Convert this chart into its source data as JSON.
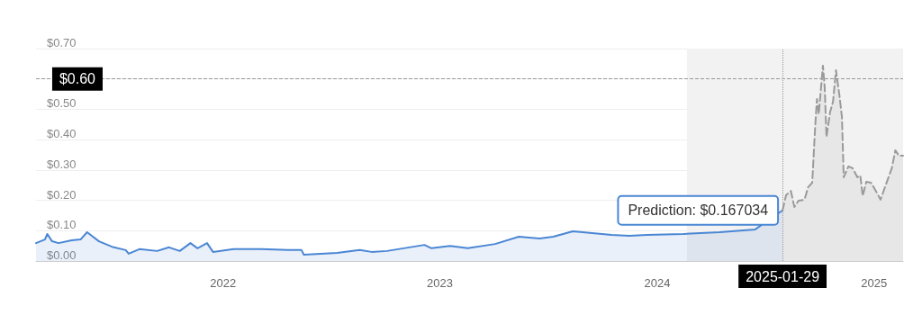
{
  "chart_data": {
    "type": "area",
    "x": [
      "2021-08-21",
      "2021-09-05",
      "2021-09-09",
      "2021-09-17",
      "2021-09-28",
      "2021-10-20",
      "2021-11-04",
      "2021-11-15",
      "2021-12-05",
      "2021-12-27",
      "2022-01-19",
      "2022-01-24",
      "2022-02-11",
      "2022-03-13",
      "2022-04-02",
      "2022-04-20",
      "2022-05-08",
      "2022-05-20",
      "2022-06-05",
      "2022-06-15",
      "2022-07-20",
      "2022-09-04",
      "2022-10-19",
      "2022-11-11",
      "2022-11-15",
      "2023-01-10",
      "2023-02-17",
      "2023-03-09",
      "2023-04-04",
      "2023-06-06",
      "2023-06-18",
      "2023-07-19",
      "2023-08-18",
      "2023-10-03",
      "2023-11-12",
      "2023-12-17",
      "2024-01-09",
      "2024-02-11",
      "2024-04-16",
      "2024-05-16",
      "2024-06-15",
      "2024-08-15",
      "2024-10-15",
      "2024-12-14",
      "2025-01-29"
    ],
    "series": [
      {
        "color": "#4a86d4",
        "line_style": "solid",
        "values": [
          0.059,
          0.071,
          0.089,
          0.065,
          0.059,
          0.068,
          0.071,
          0.095,
          0.065,
          0.047,
          0.036,
          0.024,
          0.039,
          0.033,
          0.045,
          0.033,
          0.059,
          0.042,
          0.059,
          0.03,
          0.039,
          0.039,
          0.036,
          0.036,
          0.021,
          0.027,
          0.036,
          0.03,
          0.033,
          0.053,
          0.042,
          0.05,
          0.042,
          0.056,
          0.08,
          0.074,
          0.08,
          0.098,
          0.086,
          0.083,
          0.086,
          0.089,
          0.095,
          0.104,
          0.167
        ]
      },
      {
        "color": "#9a9a9a",
        "line_style": "dashed",
        "x": [
          "2025-01-29",
          "2025-02-04",
          "2025-02-12",
          "2025-02-18",
          "2025-02-25",
          "2025-03-07",
          "2025-03-13",
          "2025-03-20",
          "2025-03-25",
          "2025-03-28",
          "2025-03-31",
          "2025-04-07",
          "2025-04-10",
          "2025-04-13",
          "2025-04-19",
          "2025-04-24",
          "2025-04-29",
          "2025-05-05",
          "2025-05-09",
          "2025-05-12",
          "2025-05-20",
          "2025-05-27",
          "2025-06-04",
          "2025-06-09",
          "2025-06-13",
          "2025-06-19",
          "2025-06-27",
          "2025-07-06",
          "2025-07-13",
          "2025-07-21",
          "2025-08-01",
          "2025-08-07",
          "2025-08-13",
          "2025-08-20"
        ],
        "values": [
          0.167,
          0.217,
          0.231,
          0.178,
          0.199,
          0.202,
          0.243,
          0.258,
          0.445,
          0.534,
          0.484,
          0.644,
          0.573,
          0.409,
          0.49,
          0.525,
          0.629,
          0.543,
          0.475,
          0.276,
          0.312,
          0.306,
          0.276,
          0.282,
          0.214,
          0.261,
          0.258,
          0.228,
          0.202,
          0.246,
          0.306,
          0.365,
          0.347,
          0.347
        ]
      }
    ],
    "xlim": [
      "2021-08-21",
      "2025-08-20"
    ],
    "xticks": [
      {
        "value": "2022-07-02",
        "label": "2022"
      },
      {
        "value": "2023-07-02",
        "label": "2023"
      },
      {
        "value": "2024-07-02",
        "label": "2024"
      },
      {
        "value": "2025-07-02",
        "label": "2025"
      }
    ],
    "ylim": [
      0,
      0.7
    ],
    "yticks": [
      {
        "value": 0,
        "label": "$0.00"
      },
      {
        "value": 0.1,
        "label": "$0.10"
      },
      {
        "value": 0.2,
        "label": "$0.20"
      },
      {
        "value": 0.3,
        "label": "$0.30"
      },
      {
        "value": 0.4,
        "label": "$0.40"
      },
      {
        "value": 0.5,
        "label": "$0.50"
      },
      {
        "value": 0.6,
        "label": null
      },
      {
        "value": 0.7,
        "label": "$0.70"
      }
    ],
    "grid": "y",
    "marker": "none",
    "ref_lines": [
      {
        "axis": "y",
        "value": 0.6,
        "label": "$0.60",
        "color": "#999999",
        "line_style": "dashed"
      },
      {
        "axis": "x",
        "value": "2025-01-29",
        "label": "2025-01-29",
        "color": "#999999",
        "line_style": "dotted"
      }
    ],
    "bands": [
      {
        "axis": "x",
        "from": "2024-08-21",
        "to": "2025-08-20",
        "color": "#f2f2f2"
      }
    ],
    "annotations": [
      {
        "text": "Prediction: $0.167034",
        "x": "2025-01-29",
        "y": 0.167034
      }
    ]
  }
}
